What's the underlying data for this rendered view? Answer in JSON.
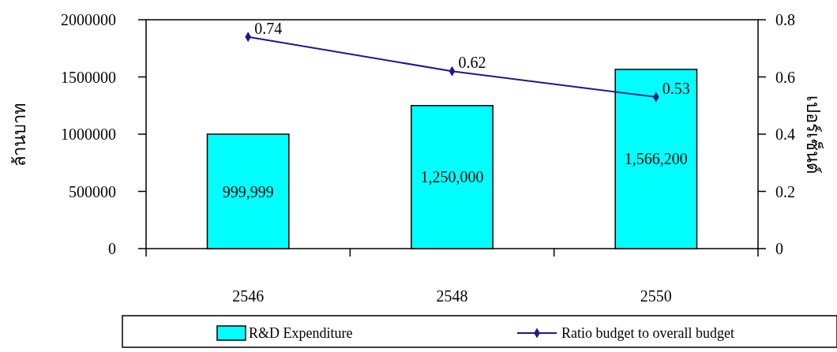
{
  "chart_data": {
    "type": "bar",
    "categories": [
      "2546",
      "2548",
      "2550"
    ],
    "series": [
      {
        "name": "R&D Expenditure",
        "color": "#00ffff",
        "values": [
          999999,
          1250000,
          1566200
        ],
        "value_labels": [
          "999,999",
          "1,250,000",
          "1,566,200"
        ]
      },
      {
        "name": "Ratio budget to overall budget",
        "type": "line",
        "axis": "y2",
        "color": "#1a1a8c",
        "values": [
          0.74,
          0.62,
          0.53
        ],
        "value_labels": [
          "0.74",
          "0.62",
          "0.53"
        ],
        "marker": "diamond"
      }
    ],
    "ylabel": "ล้านบาท",
    "y2label": "เปอร์เซ็นต์",
    "ylim": [
      0,
      2000000
    ],
    "yticks": [
      0,
      500000,
      1000000,
      1500000,
      2000000
    ],
    "y2lim": [
      0,
      0.8
    ],
    "y2ticks": [
      0,
      0.2,
      0.4,
      0.6,
      0.8
    ],
    "grid": false,
    "legend": "bottom"
  }
}
